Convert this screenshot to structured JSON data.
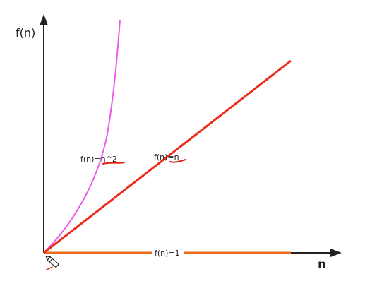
{
  "y_axis_label": "f(n)",
  "x_axis_label": "n",
  "curves": {
    "quadratic": {
      "label": "f(n)=n^2",
      "color": "#ee5be8"
    },
    "linear": {
      "label": "f(n)=n",
      "color": "#ee2a1a"
    },
    "constant": {
      "label": "f(n)=1",
      "color": "#ef6b1a"
    }
  },
  "axis_color": "#222222",
  "underline_color": "#e02010",
  "pencil_icon": "pencil-icon"
}
